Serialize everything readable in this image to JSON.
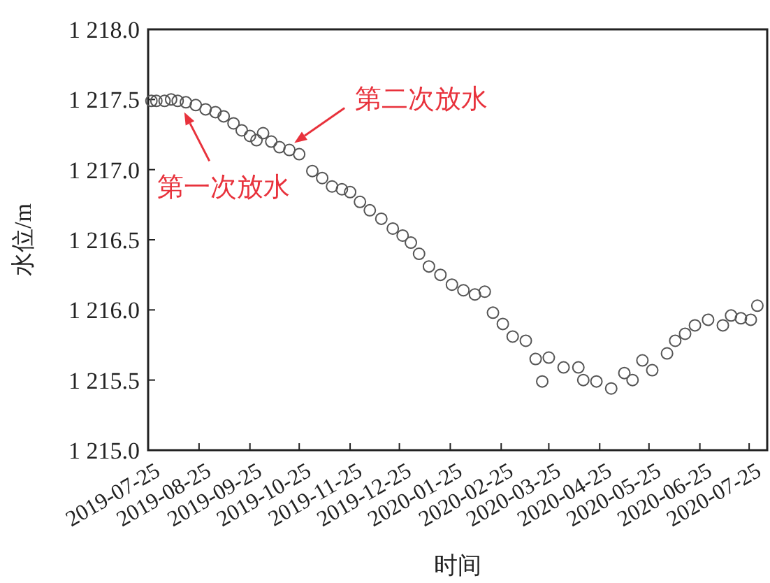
{
  "chart_data": {
    "type": "scatter",
    "xlabel": "时间",
    "ylabel": "水位/m",
    "marker": "circle",
    "grid": false,
    "xlim": [
      "2019-07-25",
      "2020-08-05"
    ],
    "xticks": [
      "2019-07-25",
      "2019-08-25",
      "2019-09-25",
      "2019-10-25",
      "2019-11-25",
      "2019-12-25",
      "2020-01-25",
      "2020-02-25",
      "2020-03-25",
      "2020-04-25",
      "2020-05-25",
      "2020-06-25",
      "2020-07-25"
    ],
    "ylim": [
      1215.0,
      1218.0
    ],
    "yticks": [
      {
        "value": 1215.0,
        "label": "1 215.0"
      },
      {
        "value": 1215.5,
        "label": "1 215.5"
      },
      {
        "value": 1216.0,
        "label": "1 216.0"
      },
      {
        "value": 1216.5,
        "label": "1 216.5"
      },
      {
        "value": 1217.0,
        "label": "1 217.0"
      },
      {
        "value": 1217.5,
        "label": "1 217.5"
      },
      {
        "value": 1218.0,
        "label": "1 218.0"
      }
    ],
    "series": [
      {
        "color": "#555555",
        "x": [
          "2019-07-27",
          "2019-07-30",
          "2019-08-04",
          "2019-08-08",
          "2019-08-12",
          "2019-08-17",
          "2019-08-23",
          "2019-08-29",
          "2019-09-04",
          "2019-09-09",
          "2019-09-15",
          "2019-09-20",
          "2019-09-25",
          "2019-09-29",
          "2019-10-03",
          "2019-10-08",
          "2019-10-13",
          "2019-10-19",
          "2019-10-25",
          "2019-11-02",
          "2019-11-08",
          "2019-11-14",
          "2019-11-20",
          "2019-11-25",
          "2019-12-01",
          "2019-12-07",
          "2019-12-14",
          "2019-12-21",
          "2019-12-27",
          "2020-01-01",
          "2020-01-06",
          "2020-01-12",
          "2020-01-19",
          "2020-01-26",
          "2020-02-02",
          "2020-02-09",
          "2020-02-15",
          "2020-02-20",
          "2020-02-26",
          "2020-03-03",
          "2020-03-11",
          "2020-03-17",
          "2020-03-21",
          "2020-03-25",
          "2020-04-03",
          "2020-04-12",
          "2020-04-15",
          "2020-04-23",
          "2020-05-02",
          "2020-05-10",
          "2020-05-15",
          "2020-05-21",
          "2020-05-27",
          "2020-06-05",
          "2020-06-10",
          "2020-06-16",
          "2020-06-22",
          "2020-06-30",
          "2020-07-09",
          "2020-07-14",
          "2020-07-20",
          "2020-07-26",
          "2020-07-30"
        ],
        "values": [
          1217.49,
          1217.49,
          1217.49,
          1217.5,
          1217.49,
          1217.48,
          1217.46,
          1217.43,
          1217.41,
          1217.38,
          1217.33,
          1217.28,
          1217.24,
          1217.21,
          1217.26,
          1217.2,
          1217.16,
          1217.14,
          1217.11,
          1216.99,
          1216.94,
          1216.88,
          1216.86,
          1216.84,
          1216.77,
          1216.71,
          1216.65,
          1216.58,
          1216.53,
          1216.48,
          1216.4,
          1216.31,
          1216.25,
          1216.18,
          1216.14,
          1216.11,
          1216.13,
          1215.98,
          1215.9,
          1215.81,
          1215.78,
          1215.65,
          1215.49,
          1215.66,
          1215.59,
          1215.59,
          1215.5,
          1215.49,
          1215.44,
          1215.55,
          1215.5,
          1215.64,
          1215.57,
          1215.69,
          1215.78,
          1215.83,
          1215.89,
          1215.93,
          1215.89,
          1215.96,
          1215.94,
          1215.93,
          1216.03
        ]
      }
    ],
    "annotations": [
      {
        "text": "第一次放水",
        "x": "2019-08-16",
        "y": 1217.41
      },
      {
        "text": "第二次放水",
        "x": "2019-10-22",
        "y": 1217.19
      }
    ]
  }
}
